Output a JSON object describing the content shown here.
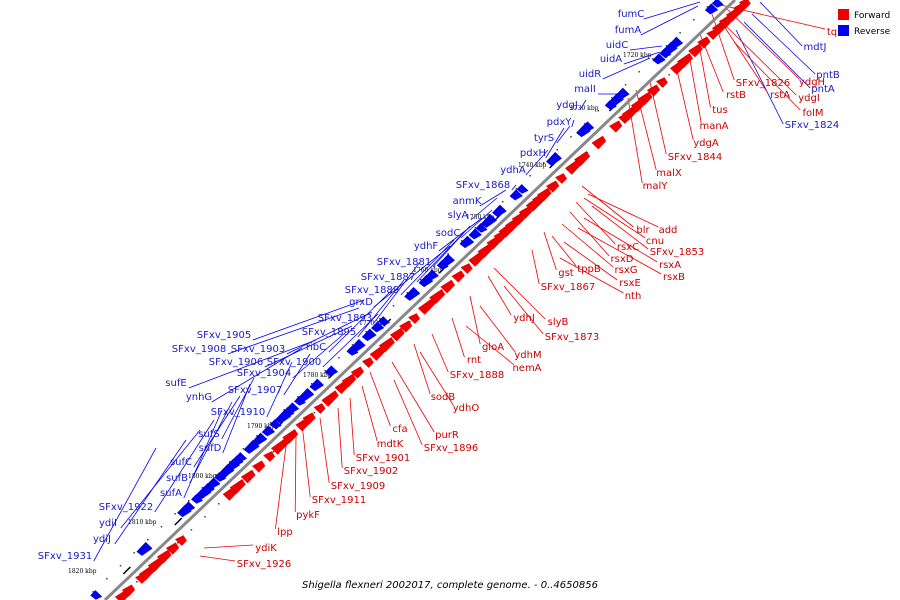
{
  "caption": "Shigella flexneri 2002017, complete genome. - 0..4650856",
  "legend": [
    {
      "label": "Forward",
      "color": "#ee0000"
    },
    {
      "label": "Reverse",
      "color": "#0000ee"
    }
  ],
  "colors": {
    "forward": "#ee0000",
    "reverse": "#0000ee",
    "backbone": "#777777"
  },
  "ticks": [
    "1720 kbp",
    "1730 kbp",
    "1740 kbp",
    "1750 kbp",
    "1760 kbp",
    "1770 kbp",
    "1780 kbp",
    "1790 kbp",
    "1800 kbp",
    "1810 kbp",
    "1820 kbp"
  ],
  "reverse_genes": [
    "fumC",
    "fumA",
    "uidC",
    "uidA",
    "uidR",
    "malI",
    "ydgJ",
    "pdxY",
    "tyrS",
    "pdxH",
    "ydhA",
    "SFxv_1868",
    "anmK",
    "slyA",
    "sodC",
    "ydhF",
    "SFxv_1881",
    "SFxv_1887",
    "SFxv_1889",
    "grxD",
    "SFxv_1893",
    "SFxv_1895",
    "ribC",
    "SFxv_1905",
    "SFxv_1908",
    "SFxv_1903",
    "SFxv_1906",
    "SFxv_1900",
    "SFxv_1904",
    "sufE",
    "ynhG",
    "SFxv_1907",
    "SFxv_1910",
    "sufS",
    "sufD",
    "sufC",
    "sufB",
    "sufA",
    "SFxv_1922",
    "ydiI",
    "ydiJ",
    "SFxv_1931"
  ],
  "reverse_genes_right": [
    "mdtJ",
    "pntB",
    "pntA",
    "SFxv_1824"
  ],
  "forward_genes": [
    "tqsA",
    "ydgH",
    "SFxv_1826",
    "rstA",
    "ydgI",
    "rstB",
    "folM",
    "tus",
    "manA",
    "ydgA",
    "SFxv_1844",
    "malX",
    "malY",
    "blr",
    "add",
    "cnu",
    "rsxC",
    "SFxv_1853",
    "rsxD",
    "rsxA",
    "rsxG",
    "rsxB",
    "gst",
    "tppB",
    "rsxE",
    "SFxv_1867",
    "nth",
    "slyB",
    "ydhJ",
    "SFxv_1873",
    "gloA",
    "ydhM",
    "rnt",
    "nemA",
    "SFxv_1888",
    "sodB",
    "ydhO",
    "purR",
    "cfa",
    "SFxv_1896",
    "mdtK",
    "SFxv_1901",
    "SFxv_1902",
    "SFxv_1909",
    "SFxv_1911",
    "pykF",
    "lpp",
    "ydiK",
    "SFxv_1926"
  ]
}
